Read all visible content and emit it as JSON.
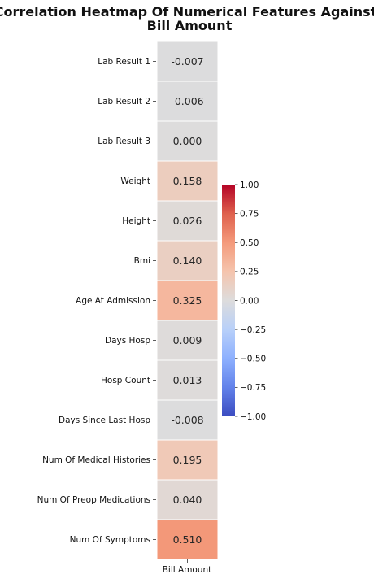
{
  "chart_data": {
    "type": "heatmap",
    "title_lines": [
      "Correlation Heatmap Of Numerical Features Against",
      "Bill Amount"
    ],
    "column": "Bill Amount",
    "rows": [
      {
        "label": "Lab Result 1",
        "value": -0.007,
        "text": "-0.007"
      },
      {
        "label": "Lab Result 2",
        "value": -0.006,
        "text": "-0.006"
      },
      {
        "label": "Lab Result 3",
        "value": 0.0,
        "text": "0.000"
      },
      {
        "label": "Weight",
        "value": 0.158,
        "text": "0.158"
      },
      {
        "label": "Height",
        "value": 0.026,
        "text": "0.026"
      },
      {
        "label": "Bmi",
        "value": 0.14,
        "text": "0.140"
      },
      {
        "label": "Age At Admission",
        "value": 0.325,
        "text": "0.325"
      },
      {
        "label": "Days Hosp",
        "value": 0.009,
        "text": "0.009"
      },
      {
        "label": "Hosp Count",
        "value": 0.013,
        "text": "0.013"
      },
      {
        "label": "Days Since Last Hosp",
        "value": -0.008,
        "text": "-0.008"
      },
      {
        "label": "Num Of Medical Histories",
        "value": 0.195,
        "text": "0.195"
      },
      {
        "label": "Num Of Preop Medications",
        "value": 0.04,
        "text": "0.040"
      },
      {
        "label": "Num Of Symptoms",
        "value": 0.51,
        "text": "0.510"
      }
    ],
    "colormap": "coolwarm",
    "vmin": -1.0,
    "vmax": 1.0,
    "colorbar_ticks": [
      {
        "value": 1.0,
        "text": "1.00"
      },
      {
        "value": 0.75,
        "text": "0.75"
      },
      {
        "value": 0.5,
        "text": "0.50"
      },
      {
        "value": 0.25,
        "text": "0.25"
      },
      {
        "value": 0.0,
        "text": "0.00"
      },
      {
        "value": -0.25,
        "text": "−0.25"
      },
      {
        "value": -0.5,
        "text": "−0.50"
      },
      {
        "value": -0.75,
        "text": "−0.75"
      },
      {
        "value": -1.0,
        "text": "−1.00"
      }
    ]
  }
}
